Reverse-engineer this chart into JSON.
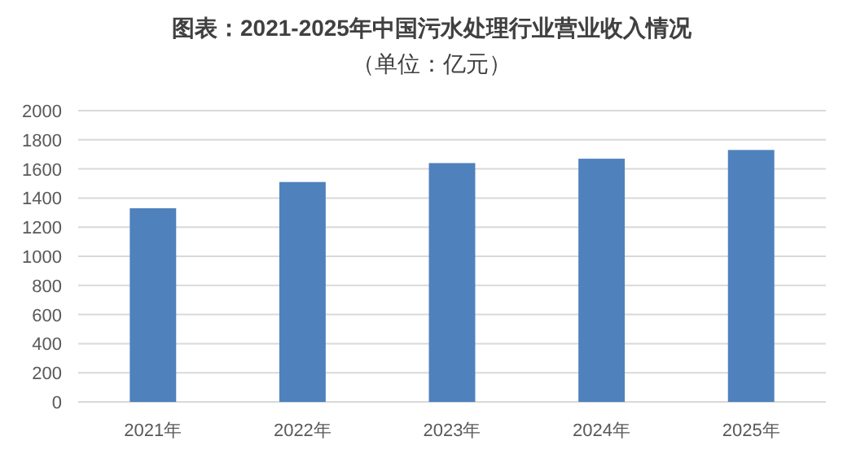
{
  "chart_data": {
    "type": "bar",
    "title": "图表：2021-2025年中国污水处理行业营业收入情况",
    "subtitle": "（单位：亿元）",
    "categories": [
      "2021年",
      "2022年",
      "2023年",
      "2024年",
      "2025年"
    ],
    "values": [
      1330,
      1510,
      1640,
      1670,
      1730
    ],
    "color": "#4f81bd",
    "ylim": [
      0,
      2000
    ],
    "yticks": [
      0,
      200,
      400,
      600,
      800,
      1000,
      1200,
      1400,
      1600,
      1800,
      2000
    ],
    "grid": "y"
  }
}
